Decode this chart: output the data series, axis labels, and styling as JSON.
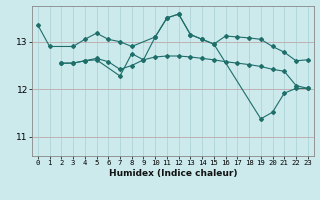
{
  "title": "",
  "xlabel": "Humidex (Indice chaleur)",
  "ylabel": "",
  "bg_color": "#cce9ec",
  "line_color": "#1e6e6a",
  "grid_color_major": "#b0d4d8",
  "grid_color_minor": "#c8e4e8",
  "yticks": [
    11,
    12,
    13
  ],
  "ylim": [
    10.6,
    13.75
  ],
  "xlim": [
    -0.5,
    23.5
  ],
  "xticks": [
    0,
    1,
    2,
    3,
    4,
    5,
    6,
    7,
    8,
    9,
    10,
    11,
    12,
    13,
    14,
    15,
    16,
    17,
    18,
    19,
    20,
    21,
    22,
    23
  ],
  "series1": {
    "x": [
      0,
      1,
      3,
      4,
      5,
      6,
      7,
      8,
      10,
      11,
      12,
      13,
      14,
      15,
      16,
      17,
      18,
      19,
      20,
      21,
      22,
      23
    ],
    "y": [
      13.35,
      12.9,
      12.9,
      13.05,
      13.18,
      13.05,
      13.0,
      12.9,
      13.1,
      13.5,
      13.58,
      13.15,
      13.05,
      12.95,
      13.12,
      13.1,
      13.08,
      13.05,
      12.9,
      12.78,
      12.6,
      12.62
    ]
  },
  "series2": {
    "x": [
      2,
      3,
      4,
      5,
      6,
      7,
      8,
      9,
      10,
      11,
      12,
      13,
      14,
      15,
      16,
      17,
      18,
      19,
      20,
      21,
      22,
      23
    ],
    "y": [
      12.55,
      12.55,
      12.6,
      12.65,
      12.58,
      12.42,
      12.5,
      12.62,
      12.68,
      12.7,
      12.7,
      12.68,
      12.65,
      12.62,
      12.58,
      12.55,
      12.52,
      12.48,
      12.42,
      12.38,
      12.08,
      12.02
    ]
  },
  "series3": {
    "x": [
      2,
      3,
      4,
      5,
      7,
      8,
      9,
      10,
      11,
      12,
      13,
      14,
      15,
      19,
      20,
      21,
      22,
      23
    ],
    "y": [
      12.55,
      12.55,
      12.6,
      12.62,
      12.28,
      12.75,
      12.62,
      13.1,
      13.5,
      13.58,
      13.15,
      13.05,
      12.95,
      11.38,
      11.52,
      11.92,
      12.02,
      12.02
    ]
  }
}
